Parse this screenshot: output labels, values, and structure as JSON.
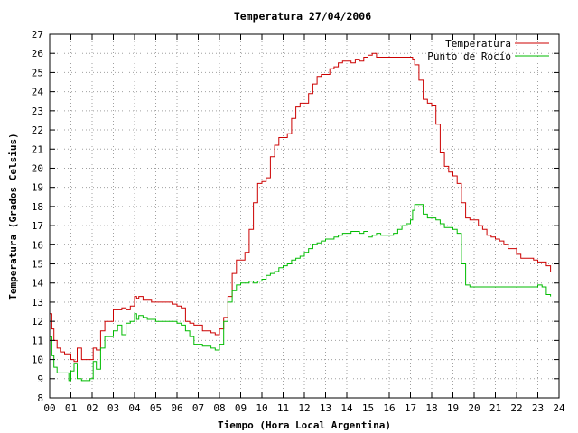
{
  "chart_data": {
    "type": "line",
    "title": "Temperatura 27/04/2006",
    "xlabel": "Tiempo (Hora Local Argentina)",
    "ylabel": "Temperatura (Grados Celsius)",
    "xlim": [
      0,
      24
    ],
    "ylim": [
      8,
      27
    ],
    "x_ticks": [
      "00",
      "01",
      "02",
      "03",
      "04",
      "05",
      "06",
      "07",
      "08",
      "09",
      "10",
      "11",
      "12",
      "13",
      "14",
      "15",
      "16",
      "17",
      "18",
      "19",
      "20",
      "21",
      "22",
      "23",
      "24"
    ],
    "y_ticks": [
      "8",
      "9",
      "10",
      "11",
      "12",
      "13",
      "14",
      "15",
      "16",
      "17",
      "18",
      "19",
      "20",
      "21",
      "22",
      "23",
      "24",
      "25",
      "26",
      "27"
    ],
    "grid": true,
    "legend_position": "top-right",
    "series": [
      {
        "name": "Temperatura",
        "color": "#cc0000",
        "x": [
          0.0,
          0.1,
          0.2,
          0.35,
          0.5,
          0.7,
          0.9,
          1.0,
          1.15,
          1.3,
          1.5,
          1.7,
          1.9,
          2.05,
          2.2,
          2.4,
          2.6,
          2.8,
          3.0,
          3.2,
          3.4,
          3.6,
          3.8,
          4.0,
          4.1,
          4.2,
          4.4,
          4.6,
          4.8,
          5.0,
          5.2,
          5.5,
          5.8,
          6.0,
          6.2,
          6.4,
          6.6,
          6.8,
          7.0,
          7.2,
          7.4,
          7.6,
          7.8,
          8.0,
          8.2,
          8.4,
          8.6,
          8.8,
          9.0,
          9.2,
          9.4,
          9.6,
          9.8,
          10.0,
          10.2,
          10.4,
          10.6,
          10.8,
          11.0,
          11.2,
          11.4,
          11.6,
          11.8,
          12.0,
          12.2,
          12.4,
          12.6,
          12.8,
          13.0,
          13.2,
          13.4,
          13.6,
          13.8,
          14.0,
          14.2,
          14.4,
          14.6,
          14.8,
          15.0,
          15.2,
          15.4,
          15.6,
          15.8,
          16.0,
          16.2,
          16.4,
          16.6,
          16.8,
          17.0,
          17.1,
          17.2,
          17.4,
          17.6,
          17.8,
          18.0,
          18.2,
          18.4,
          18.6,
          18.8,
          19.0,
          19.2,
          19.4,
          19.6,
          19.8,
          20.0,
          20.2,
          20.4,
          20.6,
          20.8,
          21.0,
          21.2,
          21.4,
          21.6,
          21.8,
          22.0,
          22.2,
          22.4,
          22.6,
          22.8,
          23.0,
          23.2,
          23.4,
          23.6
        ],
        "y": [
          12.4,
          11.6,
          11.0,
          10.6,
          10.4,
          10.3,
          10.3,
          10.0,
          9.9,
          10.6,
          10.0,
          10.0,
          10.0,
          10.6,
          10.5,
          11.5,
          12.0,
          12.0,
          12.6,
          12.6,
          12.7,
          12.6,
          12.8,
          13.3,
          13.2,
          13.3,
          13.1,
          13.1,
          13.0,
          13.0,
          13.0,
          13.0,
          12.9,
          12.8,
          12.7,
          12.0,
          11.9,
          11.8,
          11.8,
          11.5,
          11.5,
          11.4,
          11.3,
          11.6,
          12.2,
          13.3,
          14.5,
          15.2,
          15.2,
          15.6,
          16.8,
          18.2,
          19.2,
          19.3,
          19.5,
          20.6,
          21.2,
          21.6,
          21.6,
          21.8,
          22.6,
          23.2,
          23.4,
          23.4,
          23.9,
          24.4,
          24.8,
          24.9,
          24.9,
          25.2,
          25.3,
          25.5,
          25.6,
          25.6,
          25.5,
          25.7,
          25.6,
          25.8,
          25.9,
          26.0,
          25.8,
          25.8,
          25.8,
          25.8,
          25.8,
          25.8,
          25.8,
          25.8,
          25.8,
          25.7,
          25.4,
          24.6,
          23.6,
          23.4,
          23.3,
          22.3,
          20.8,
          20.1,
          19.8,
          19.6,
          19.2,
          18.2,
          17.4,
          17.3,
          17.3,
          17.0,
          16.8,
          16.5,
          16.4,
          16.3,
          16.2,
          16.0,
          15.8,
          15.8,
          15.5,
          15.3,
          15.3,
          15.3,
          15.2,
          15.1,
          15.1,
          14.9,
          14.6
        ]
      },
      {
        "name": "Punto de Rocío",
        "color": "#00bb00",
        "x": [
          0.0,
          0.1,
          0.2,
          0.35,
          0.5,
          0.7,
          0.9,
          1.0,
          1.15,
          1.3,
          1.5,
          1.7,
          1.9,
          2.05,
          2.2,
          2.4,
          2.6,
          2.8,
          3.0,
          3.2,
          3.4,
          3.6,
          3.8,
          4.0,
          4.1,
          4.2,
          4.4,
          4.6,
          4.8,
          5.0,
          5.2,
          5.5,
          5.8,
          6.0,
          6.2,
          6.4,
          6.6,
          6.8,
          7.0,
          7.2,
          7.4,
          7.6,
          7.8,
          8.0,
          8.2,
          8.4,
          8.6,
          8.8,
          9.0,
          9.2,
          9.4,
          9.6,
          9.8,
          10.0,
          10.2,
          10.4,
          10.6,
          10.8,
          11.0,
          11.2,
          11.4,
          11.6,
          11.8,
          12.0,
          12.2,
          12.4,
          12.6,
          12.8,
          13.0,
          13.2,
          13.4,
          13.6,
          13.8,
          14.0,
          14.2,
          14.4,
          14.6,
          14.8,
          15.0,
          15.2,
          15.4,
          15.6,
          15.8,
          16.0,
          16.2,
          16.4,
          16.6,
          16.8,
          17.0,
          17.1,
          17.2,
          17.4,
          17.6,
          17.8,
          18.0,
          18.2,
          18.4,
          18.6,
          18.8,
          19.0,
          19.2,
          19.4,
          19.6,
          19.8,
          20.0,
          20.2,
          20.4,
          20.6,
          20.8,
          21.0,
          21.2,
          21.4,
          21.6,
          21.8,
          22.0,
          22.2,
          22.4,
          22.6,
          22.8,
          23.0,
          23.2,
          23.4,
          23.6
        ],
        "y": [
          11.2,
          10.2,
          9.6,
          9.3,
          9.3,
          9.3,
          8.9,
          9.4,
          9.8,
          9.0,
          8.9,
          8.9,
          9.0,
          9.9,
          9.5,
          10.6,
          11.2,
          11.2,
          11.5,
          11.8,
          11.3,
          11.9,
          12.0,
          12.4,
          12.1,
          12.3,
          12.2,
          12.1,
          12.1,
          12.0,
          12.0,
          12.0,
          12.0,
          11.9,
          11.8,
          11.5,
          11.2,
          10.8,
          10.8,
          10.7,
          10.7,
          10.6,
          10.5,
          10.8,
          12.0,
          13.0,
          13.6,
          13.9,
          14.0,
          14.0,
          14.1,
          14.0,
          14.1,
          14.2,
          14.4,
          14.5,
          14.6,
          14.8,
          14.9,
          15.0,
          15.2,
          15.3,
          15.4,
          15.6,
          15.8,
          16.0,
          16.1,
          16.2,
          16.3,
          16.3,
          16.4,
          16.5,
          16.6,
          16.6,
          16.7,
          16.7,
          16.6,
          16.7,
          16.4,
          16.5,
          16.6,
          16.5,
          16.5,
          16.5,
          16.6,
          16.8,
          17.0,
          17.1,
          17.3,
          17.8,
          18.1,
          18.1,
          17.6,
          17.4,
          17.4,
          17.3,
          17.1,
          16.9,
          16.9,
          16.8,
          16.6,
          15.0,
          13.9,
          13.8,
          13.8,
          13.8,
          13.8,
          13.8,
          13.8,
          13.8,
          13.8,
          13.8,
          13.8,
          13.8,
          13.8,
          13.8,
          13.8,
          13.8,
          13.8,
          13.9,
          13.8,
          13.4,
          13.3
        ]
      }
    ]
  }
}
